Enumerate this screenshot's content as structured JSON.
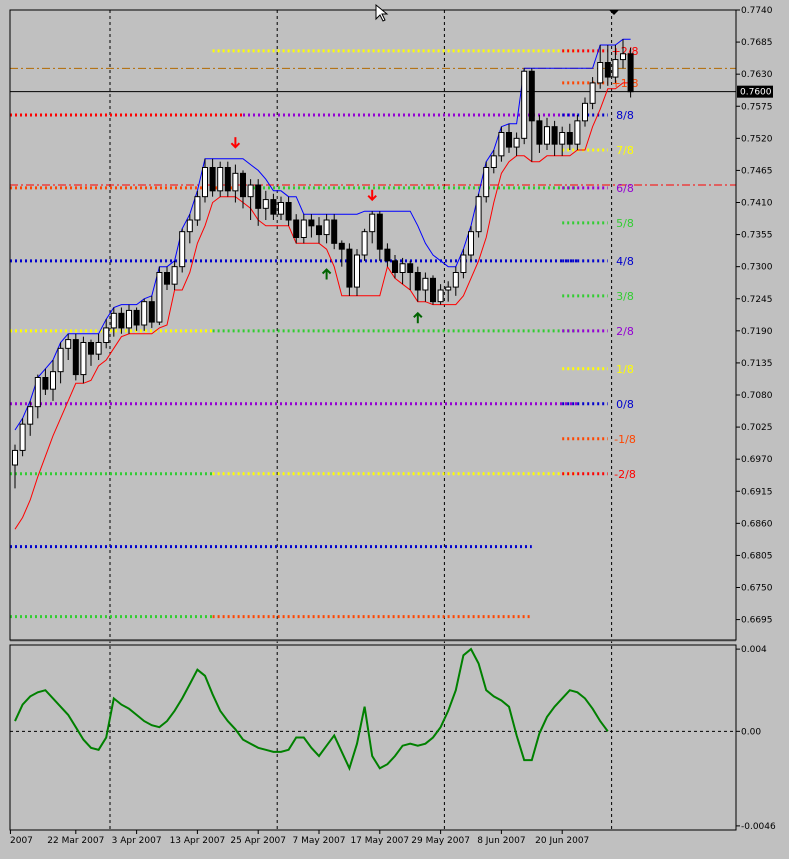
{
  "chart_data": {
    "type": "candlestick",
    "colors": {
      "background": "#c0c0c0",
      "bull_candle": "#ffffff",
      "bear_candle": "#000000",
      "upper_band": "#0000ff",
      "lower_band": "#ff0000",
      "oscillator": "#008000",
      "arrow_down": "#ff0000",
      "arrow_up": "#006400",
      "brown_level": "#b36a00",
      "red_level": "#ff0000"
    },
    "price_axis": {
      "min": 0.666,
      "max": 0.774,
      "ticks": [
        "0.7740",
        "0.7685",
        "0.7630",
        "0.7575",
        "0.7520",
        "0.7465",
        "0.7410",
        "0.7355",
        "0.7300",
        "0.7245",
        "0.7190",
        "0.7135",
        "0.7080",
        "0.7025",
        "0.6970",
        "0.6915",
        "0.6860",
        "0.6805",
        "0.6750",
        "0.6695"
      ]
    },
    "current_price": {
      "value": 0.76,
      "label": "0.7600"
    },
    "oscillator_axis": {
      "min": -0.0048,
      "max": 0.0042,
      "ticks": [
        {
          "v": 0.004,
          "label": "0.004"
        },
        {
          "v": 0.0,
          "label": "0.00"
        },
        {
          "v": -0.0046,
          "label": "-0.0046"
        }
      ]
    },
    "date_labels": [
      {
        "text": "2007",
        "index": -0.6
      },
      {
        "text": "22 Mar 2007",
        "index": 8
      },
      {
        "text": "3 Apr 2007",
        "index": 16
      },
      {
        "text": "13 Apr 2007",
        "index": 24
      },
      {
        "text": "25 Apr 2007",
        "index": 32
      },
      {
        "text": "7 May 2007",
        "index": 40
      },
      {
        "text": "17 May 2007",
        "index": 48
      },
      {
        "text": "29 May 2007",
        "index": 56
      },
      {
        "text": "8 Jun 2007",
        "index": 64
      },
      {
        "text": "20 Jun 2007",
        "index": 72
      }
    ],
    "period_separators": [
      12,
      34,
      56,
      78
    ],
    "candles": [
      [
        0.696,
        0.6985,
        0.692,
        0.6995
      ],
      [
        0.6985,
        0.703,
        0.6975,
        0.704
      ],
      [
        0.703,
        0.706,
        0.701,
        0.707
      ],
      [
        0.706,
        0.711,
        0.704,
        0.7115
      ],
      [
        0.711,
        0.709,
        0.708,
        0.7125
      ],
      [
        0.709,
        0.712,
        0.707,
        0.714
      ],
      [
        0.712,
        0.716,
        0.71,
        0.717
      ],
      [
        0.716,
        0.7175,
        0.714,
        0.7185
      ],
      [
        0.7175,
        0.7115,
        0.7105,
        0.7185
      ],
      [
        0.7115,
        0.717,
        0.71,
        0.718
      ],
      [
        0.717,
        0.715,
        0.713,
        0.7175
      ],
      [
        0.715,
        0.717,
        0.714,
        0.7185
      ],
      [
        0.717,
        0.7195,
        0.716,
        0.721
      ],
      [
        0.7195,
        0.722,
        0.718,
        0.723
      ],
      [
        0.722,
        0.7195,
        0.7185,
        0.723
      ],
      [
        0.7195,
        0.7225,
        0.7185,
        0.7235
      ],
      [
        0.7225,
        0.72,
        0.719,
        0.723
      ],
      [
        0.72,
        0.724,
        0.719,
        0.7245
      ],
      [
        0.724,
        0.7205,
        0.7195,
        0.725
      ],
      [
        0.7205,
        0.729,
        0.72,
        0.73
      ],
      [
        0.729,
        0.727,
        0.726,
        0.73
      ],
      [
        0.727,
        0.73,
        0.726,
        0.731
      ],
      [
        0.73,
        0.736,
        0.729,
        0.7365
      ],
      [
        0.736,
        0.738,
        0.734,
        0.739
      ],
      [
        0.738,
        0.742,
        0.737,
        0.743
      ],
      [
        0.742,
        0.747,
        0.741,
        0.7485
      ],
      [
        0.747,
        0.743,
        0.742,
        0.7485
      ],
      [
        0.743,
        0.747,
        0.742,
        0.748
      ],
      [
        0.747,
        0.743,
        0.742,
        0.748
      ],
      [
        0.743,
        0.746,
        0.741,
        0.7475
      ],
      [
        0.746,
        0.742,
        0.74,
        0.7465
      ],
      [
        0.742,
        0.744,
        0.738,
        0.745
      ],
      [
        0.744,
        0.74,
        0.737,
        0.745
      ],
      [
        0.74,
        0.7415,
        0.738,
        0.743
      ],
      [
        0.7415,
        0.739,
        0.738,
        0.7425
      ],
      [
        0.739,
        0.741,
        0.738,
        0.742
      ],
      [
        0.741,
        0.738,
        0.737,
        0.742
      ],
      [
        0.738,
        0.735,
        0.734,
        0.739
      ],
      [
        0.735,
        0.738,
        0.734,
        0.739
      ],
      [
        0.738,
        0.737,
        0.735,
        0.739
      ],
      [
        0.737,
        0.7355,
        0.734,
        0.7385
      ],
      [
        0.7355,
        0.738,
        0.734,
        0.739
      ],
      [
        0.738,
        0.734,
        0.733,
        0.739
      ],
      [
        0.734,
        0.733,
        0.73,
        0.7345
      ],
      [
        0.733,
        0.7265,
        0.725,
        0.734
      ],
      [
        0.7265,
        0.732,
        0.725,
        0.733
      ],
      [
        0.732,
        0.736,
        0.731,
        0.7365
      ],
      [
        0.736,
        0.739,
        0.734,
        0.7395
      ],
      [
        0.739,
        0.733,
        0.731,
        0.7395
      ],
      [
        0.733,
        0.731,
        0.73,
        0.734
      ],
      [
        0.731,
        0.729,
        0.728,
        0.732
      ],
      [
        0.729,
        0.7305,
        0.727,
        0.7315
      ],
      [
        0.7305,
        0.729,
        0.726,
        0.731
      ],
      [
        0.729,
        0.726,
        0.724,
        0.73
      ],
      [
        0.726,
        0.728,
        0.724,
        0.729
      ],
      [
        0.728,
        0.724,
        0.7235,
        0.7285
      ],
      [
        0.724,
        0.726,
        0.7235,
        0.727
      ],
      [
        0.726,
        0.7265,
        0.724,
        0.7275
      ],
      [
        0.7265,
        0.729,
        0.725,
        0.73
      ],
      [
        0.729,
        0.732,
        0.728,
        0.733
      ],
      [
        0.732,
        0.736,
        0.731,
        0.737
      ],
      [
        0.736,
        0.742,
        0.735,
        0.7425
      ],
      [
        0.742,
        0.747,
        0.741,
        0.748
      ],
      [
        0.747,
        0.749,
        0.746,
        0.75
      ],
      [
        0.749,
        0.753,
        0.748,
        0.754
      ],
      [
        0.753,
        0.7505,
        0.7495,
        0.7545
      ],
      [
        0.7505,
        0.752,
        0.749,
        0.753
      ],
      [
        0.752,
        0.7635,
        0.751,
        0.764
      ],
      [
        0.7635,
        0.755,
        0.748,
        0.764
      ],
      [
        0.755,
        0.751,
        0.7495,
        0.756
      ],
      [
        0.751,
        0.754,
        0.75,
        0.7555
      ],
      [
        0.754,
        0.751,
        0.749,
        0.755
      ],
      [
        0.751,
        0.753,
        0.749,
        0.754
      ],
      [
        0.753,
        0.751,
        0.75,
        0.7545
      ],
      [
        0.751,
        0.755,
        0.75,
        0.756
      ],
      [
        0.755,
        0.758,
        0.754,
        0.759
      ],
      [
        0.758,
        0.7615,
        0.757,
        0.7625
      ],
      [
        0.7615,
        0.765,
        0.7605,
        0.768
      ],
      [
        0.765,
        0.7625,
        0.761,
        0.768
      ],
      [
        0.7625,
        0.7655,
        0.7615,
        0.768
      ],
      [
        0.7655,
        0.7665,
        0.764,
        0.769
      ],
      [
        0.7665,
        0.76,
        0.759,
        0.7675
      ]
    ],
    "upper_band": [
      0.702,
      0.704,
      0.707,
      0.711,
      0.7125,
      0.714,
      0.717,
      0.7185,
      0.7185,
      0.7185,
      0.7185,
      0.7185,
      0.721,
      0.723,
      0.7235,
      0.7235,
      0.7235,
      0.7245,
      0.725,
      0.73,
      0.73,
      0.731,
      0.7365,
      0.739,
      0.743,
      0.7485,
      0.7485,
      0.7485,
      0.7485,
      0.7485,
      0.7485,
      0.7475,
      0.7465,
      0.745,
      0.743,
      0.743,
      0.742,
      0.742,
      0.739,
      0.739,
      0.739,
      0.739,
      0.739,
      0.739,
      0.739,
      0.739,
      0.7395,
      0.7395,
      0.7395,
      0.7395,
      0.7395,
      0.7395,
      0.7395,
      0.737,
      0.734,
      0.732,
      0.731,
      0.73,
      0.73,
      0.733,
      0.737,
      0.7425,
      0.748,
      0.75,
      0.754,
      0.7545,
      0.7545,
      0.764,
      0.764,
      0.764,
      0.764,
      0.764,
      0.764,
      0.764,
      0.764,
      0.764,
      0.764,
      0.768,
      0.768,
      0.768,
      0.769,
      0.769
    ],
    "lower_band": [
      0.685,
      0.687,
      0.69,
      0.694,
      0.6975,
      0.701,
      0.704,
      0.707,
      0.71,
      0.71,
      0.7105,
      0.713,
      0.714,
      0.716,
      0.718,
      0.7185,
      0.7185,
      0.7185,
      0.7185,
      0.7195,
      0.72,
      0.726,
      0.726,
      0.729,
      0.734,
      0.737,
      0.741,
      0.742,
      0.742,
      0.742,
      0.741,
      0.74,
      0.738,
      0.737,
      0.737,
      0.737,
      0.737,
      0.734,
      0.734,
      0.734,
      0.734,
      0.733,
      0.73,
      0.725,
      0.725,
      0.725,
      0.725,
      0.725,
      0.725,
      0.73,
      0.728,
      0.727,
      0.726,
      0.724,
      0.724,
      0.7235,
      0.7235,
      0.7235,
      0.7235,
      0.725,
      0.728,
      0.731,
      0.735,
      0.741,
      0.746,
      0.748,
      0.749,
      0.749,
      0.748,
      0.748,
      0.749,
      0.749,
      0.749,
      0.749,
      0.75,
      0.75,
      0.754,
      0.757,
      0.7605,
      0.7605,
      0.7615,
      0.7615
    ],
    "murrey_levels": [
      {
        "label": "+2/8",
        "value": 0.767,
        "color": "#ff0000"
      },
      {
        "label": "+1/8",
        "value": 0.7615,
        "color": "#ff4500"
      },
      {
        "label": "8/8",
        "value": 0.756,
        "color": "#0000cd"
      },
      {
        "label": "7/8",
        "value": 0.75,
        "color": "#ffff00"
      },
      {
        "label": "6/8",
        "value": 0.7435,
        "color": "#9400d3"
      },
      {
        "label": "5/8",
        "value": 0.7375,
        "color": "#32cd32"
      },
      {
        "label": "4/8",
        "value": 0.731,
        "color": "#0000cd"
      },
      {
        "label": "3/8",
        "value": 0.725,
        "color": "#32cd32"
      },
      {
        "label": "2/8",
        "value": 0.719,
        "color": "#9400d3"
      },
      {
        "label": "1/8",
        "value": 0.7125,
        "color": "#ffff00"
      },
      {
        "label": "0/8",
        "value": 0.7065,
        "color": "#0000cd"
      },
      {
        "label": "-1/8",
        "value": 0.7005,
        "color": "#ff4500"
      },
      {
        "label": "-2/8",
        "value": 0.6945,
        "color": "#ff0000"
      }
    ],
    "history_levels": [
      {
        "value": 0.767,
        "color": "#ffff00",
        "from": 26,
        "to": 74
      },
      {
        "value": 0.756,
        "color": "#ff0000",
        "from": -1,
        "to": 30
      },
      {
        "value": 0.756,
        "color": "#9400d3",
        "from": 30,
        "to": 74
      },
      {
        "value": 0.7435,
        "color": "#ff4500",
        "from": -1,
        "to": 30
      },
      {
        "value": 0.7435,
        "color": "#32cd32",
        "from": 30,
        "to": 74
      },
      {
        "value": 0.731,
        "color": "#0000cd",
        "from": -1,
        "to": 74
      },
      {
        "value": 0.719,
        "color": "#ffff00",
        "from": -1,
        "to": 26
      },
      {
        "value": 0.719,
        "color": "#32cd32",
        "from": 26,
        "to": 74
      },
      {
        "value": 0.7065,
        "color": "#9400d3",
        "from": -1,
        "to": 74
      },
      {
        "value": 0.6945,
        "color": "#32cd32",
        "from": -1,
        "to": 26
      },
      {
        "value": 0.6945,
        "color": "#ffff00",
        "from": 26,
        "to": 74
      },
      {
        "value": 0.682,
        "color": "#0000cd",
        "from": -1,
        "to": 68
      },
      {
        "value": 0.67,
        "color": "#32cd32",
        "from": -1,
        "to": 26
      },
      {
        "value": 0.67,
        "color": "#ff4500",
        "from": 26,
        "to": 68
      }
    ],
    "long_lines": [
      {
        "value": 0.764,
        "color": "#b36a00",
        "style": "dashdot"
      },
      {
        "value": 0.744,
        "color": "#ff0000",
        "style": "dashdot"
      }
    ],
    "arrows": [
      {
        "index": 29,
        "value": 0.751,
        "dir": "down"
      },
      {
        "index": 47,
        "value": 0.742,
        "dir": "down"
      },
      {
        "index": 41,
        "value": 0.729,
        "dir": "up"
      },
      {
        "index": 53,
        "value": 0.7215,
        "dir": "up"
      }
    ],
    "oscillator": [
      0.0005,
      0.0013,
      0.0017,
      0.0019,
      0.002,
      0.0016,
      0.0012,
      0.0008,
      0.0002,
      -0.0004,
      -0.0008,
      -0.0009,
      -0.0003,
      0.0016,
      0.0013,
      0.0011,
      0.0008,
      0.0005,
      0.0003,
      0.0002,
      0.0005,
      0.001,
      0.0016,
      0.0023,
      0.003,
      0.0027,
      0.0018,
      0.001,
      0.0005,
      0.0001,
      -0.0004,
      -0.0006,
      -0.0008,
      -0.0009,
      -0.001,
      -0.001,
      -0.0009,
      -0.0003,
      -0.0003,
      -0.0008,
      -0.0012,
      -0.0007,
      -0.0002,
      -0.001,
      -0.0018,
      -0.0006,
      0.0012,
      -0.0012,
      -0.0018,
      -0.0016,
      -0.0012,
      -0.0007,
      -0.0006,
      -0.0007,
      -0.0006,
      -0.0003,
      0.0002,
      0.001,
      0.002,
      0.0037,
      0.004,
      0.0033,
      0.002,
      0.0017,
      0.0015,
      0.0012,
      -0.0002,
      -0.0014,
      -0.0014,
      -0.0001,
      0.0007,
      0.0012,
      0.0016,
      0.002,
      0.0019,
      0.0016,
      0.0011,
      0.0005,
      0.0
    ]
  }
}
